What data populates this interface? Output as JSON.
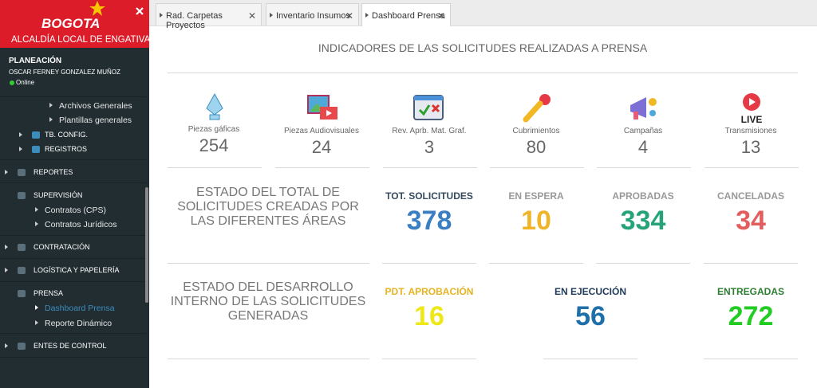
{
  "sidebar": {
    "logo": "BOGOTA",
    "org": "ALCALDÍA LOCAL DE ENGATIVA",
    "user": {
      "area": "PLANEACIÓN",
      "name": "OSCAR FERNEY GONZALEZ MUÑOZ",
      "status": "Online"
    },
    "menu": [
      "Archivos Generales",
      "Plantillas generales",
      "TB. CONFIG.",
      "REGISTROS",
      "REPORTES",
      "SUPERVISIÓN",
      "Contratos (CPS)",
      "Contratos Jurídicos",
      "CONTRATACIÓN",
      "LOGÍSTICA Y PAPELERÍA",
      "PRENSA",
      "Dashboard Prensa",
      "Reporte Dinámico",
      "ENTES DE CONTROL"
    ]
  },
  "tabs": [
    "Rad. Carpetas Proyectos",
    "Inventario Insumos",
    "Dashboard Prensa"
  ],
  "dashboard": {
    "title": "INDICADORES DE LAS SOLICITUDES REALIZADAS A PRENSA",
    "indicators": [
      {
        "label": "Piezas gáficas",
        "value": 254
      },
      {
        "label": "Piezas Audiovisuales",
        "value": 24
      },
      {
        "label": "Rev. Aprb. Mat. Graf.",
        "value": 3
      },
      {
        "label": "Cubrimientos",
        "value": 80
      },
      {
        "label": "Campañas",
        "value": 4
      },
      {
        "label": "Transmisiones",
        "value": 13
      }
    ],
    "icon_text": "LIVE",
    "sections": [
      {
        "heading": "ESTADO DEL TOTAL DE SOLICITUDES CREADAS POR LAS DIFERENTES ÁREAS",
        "stats": [
          {
            "label": "TOT. SOLICITUDES",
            "value": 378
          },
          {
            "label": "EN ESPERA",
            "value": 10
          },
          {
            "label": "APROBADAS",
            "value": 334
          },
          {
            "label": "CANCELADAS",
            "value": 34
          }
        ]
      },
      {
        "heading": "ESTADO DEL DESARROLLO INTERNO DE LAS SOLICITUDES GENERADAS",
        "stats": [
          {
            "label": "PDT. APROBACIÓN",
            "value": 16
          },
          {
            "label": "EN EJECUCIÓN",
            "value": 56
          },
          {
            "label": "ENTREGADAS",
            "value": 272
          }
        ]
      }
    ]
  }
}
